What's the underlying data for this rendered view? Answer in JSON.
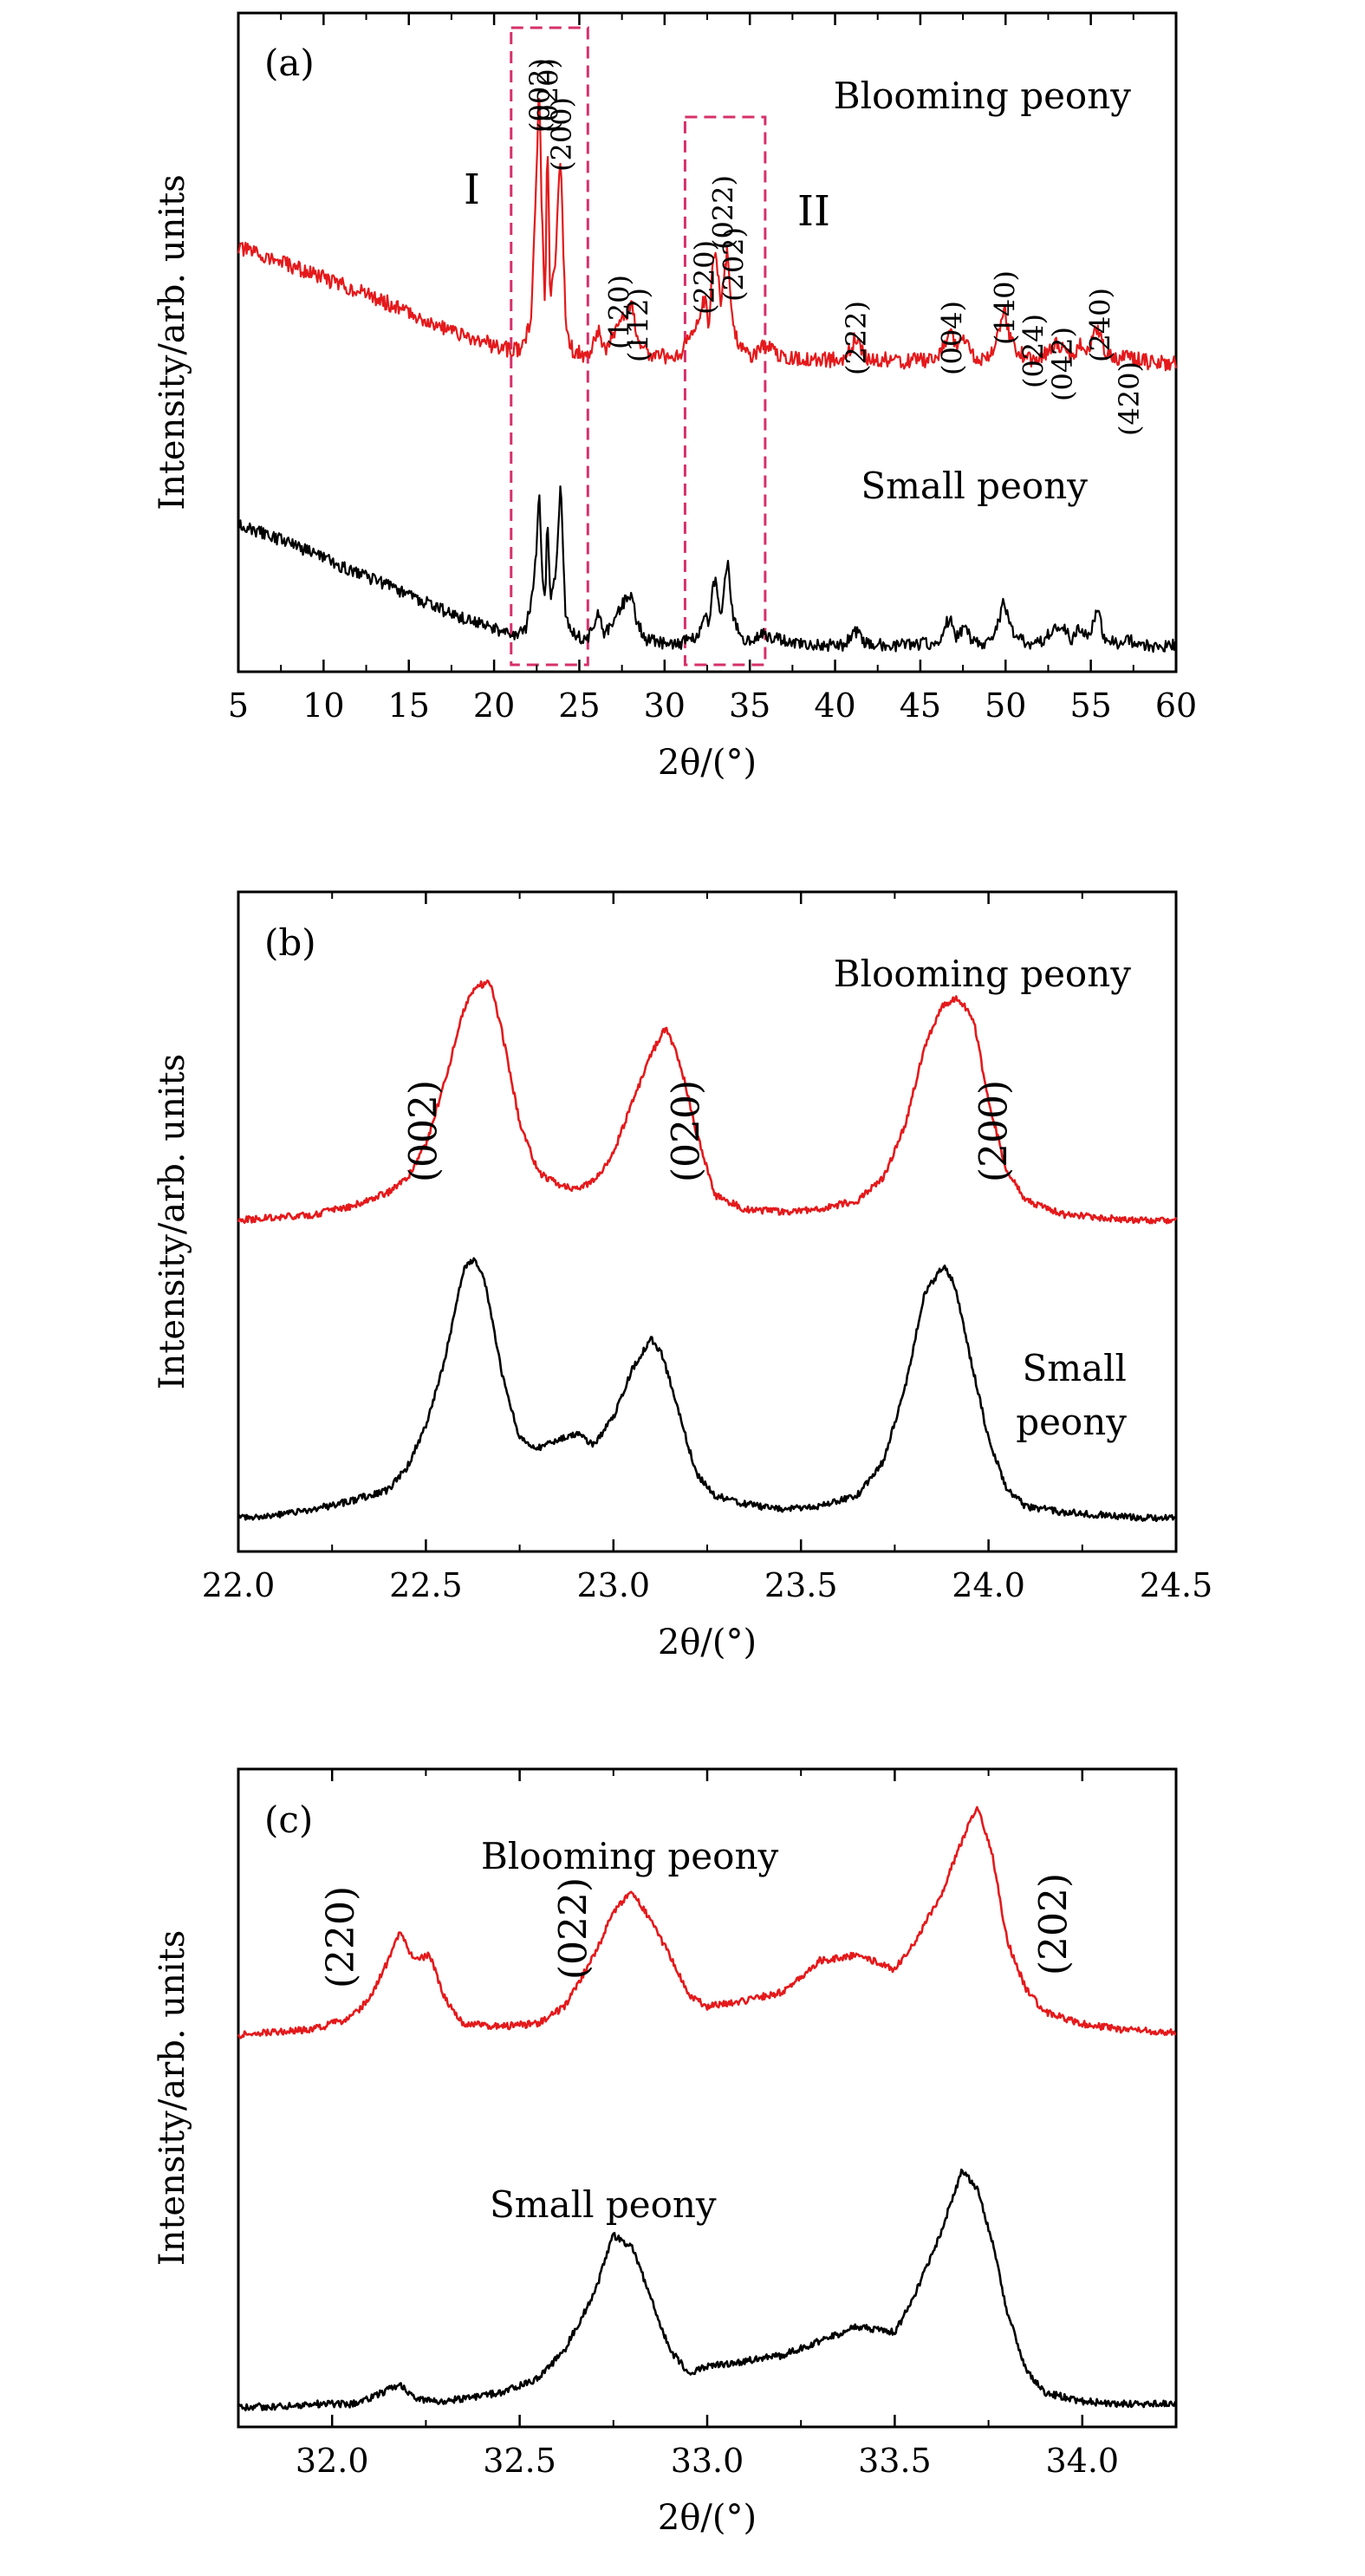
{
  "chart_data": [
    {
      "type": "line",
      "panel_label": "(a)",
      "xlabel": "2θ/(°)",
      "ylabel": "Intensity/arb. units",
      "xlim": [
        5,
        60
      ],
      "xticks": [
        5,
        10,
        15,
        20,
        25,
        30,
        35,
        40,
        45,
        50,
        55,
        60
      ],
      "tick_labels": [
        "5",
        "10",
        "15",
        "20",
        "25",
        "30",
        "35",
        "40",
        "45",
        "50",
        "55",
        "60"
      ],
      "y_ticks_labeled": false,
      "series": [
        {
          "name": "Blooming peony",
          "color": "#e4191b",
          "x": [
            5,
            6,
            8,
            10,
            12,
            14,
            16,
            18,
            20,
            21,
            21.8,
            22.2,
            22.5,
            22.65,
            22.8,
            23.0,
            23.12,
            23.3,
            23.6,
            23.9,
            24.2,
            24.6,
            25.5,
            26.1,
            26.5,
            27.3,
            27.7,
            28.1,
            28.4,
            29,
            30,
            31,
            32.0,
            32.4,
            32.6,
            32.8,
            33.0,
            33.3,
            33.7,
            34.0,
            34.5,
            35,
            35.8,
            36.3,
            37,
            38,
            39,
            40.5,
            41.2,
            41.9,
            43,
            44,
            45,
            46,
            46.5,
            46.8,
            47.1,
            47.6,
            48.2,
            49,
            49.5,
            49.9,
            50.2,
            50.6,
            51.5,
            52,
            53.0,
            53.5,
            53.9,
            54.3,
            54.8,
            55.4,
            55.8,
            56.5,
            57.2,
            58,
            59,
            60
          ],
          "y": [
            95,
            92,
            84,
            76,
            68,
            59,
            49,
            40,
            33,
            30,
            32,
            55,
            150,
            200,
            120,
            55,
            170,
            60,
            90,
            155,
            45,
            30,
            26,
            44,
            30,
            46,
            52,
            58,
            40,
            28,
            26,
            27,
            52,
            65,
            42,
            82,
            95,
            62,
            96,
            46,
            30,
            26,
            32,
            30,
            26,
            25,
            24,
            24,
            38,
            24,
            24,
            23,
            24,
            24,
            36,
            44,
            30,
            38,
            24,
            24,
            36,
            58,
            40,
            30,
            24,
            24,
            34,
            32,
            26,
            34,
            28,
            46,
            30,
            24,
            27,
            23,
            22,
            22
          ]
        },
        {
          "name": "Small peony",
          "color": "#000000",
          "x": [
            5,
            6,
            8,
            10,
            12,
            14,
            16,
            18,
            20,
            21,
            21.8,
            22.2,
            22.5,
            22.65,
            22.8,
            23.0,
            23.12,
            23.3,
            23.6,
            23.9,
            24.2,
            24.6,
            25.5,
            26.1,
            26.5,
            27.3,
            27.7,
            28.1,
            28.4,
            29,
            30,
            31,
            32.0,
            32.4,
            32.6,
            32.8,
            33.0,
            33.3,
            33.7,
            34.0,
            34.5,
            35,
            35.8,
            36.3,
            37,
            38,
            39,
            40.5,
            41.2,
            41.9,
            43,
            44,
            45,
            46,
            46.5,
            46.8,
            47.1,
            47.6,
            48.2,
            49,
            49.5,
            49.9,
            50.2,
            50.6,
            51.5,
            52,
            53.0,
            53.5,
            53.9,
            54.3,
            54.8,
            55.4,
            55.8,
            56.5,
            57.2,
            58,
            59,
            60
          ],
          "y": [
            95,
            90,
            82,
            72,
            63,
            54,
            44,
            35,
            28,
            24,
            25,
            45,
            80,
            120,
            70,
            40,
            100,
            45,
            60,
            120,
            35,
            24,
            20,
            36,
            24,
            38,
            46,
            48,
            30,
            20,
            18,
            18,
            24,
            40,
            28,
            55,
            60,
            36,
            70,
            35,
            22,
            20,
            24,
            22,
            20,
            18,
            17,
            17,
            26,
            17,
            17,
            17,
            18,
            18,
            30,
            36,
            22,
            28,
            18,
            18,
            28,
            46,
            30,
            22,
            18,
            18,
            28,
            26,
            19,
            28,
            22,
            38,
            22,
            18,
            20,
            17,
            16,
            17
          ]
        }
      ],
      "series_labels": [
        "Blooming peony",
        "Small peony"
      ],
      "peak_labels": [
        "(002)",
        "(020)",
        "(200)",
        "(120)",
        "(112)",
        "(220)",
        "(022)",
        "(202)",
        "(222)",
        "(004)",
        "(140)",
        "(024)",
        "(042)",
        "(240)",
        "(420)"
      ],
      "regions": [
        {
          "label": "I",
          "x_range": [
            21,
            25.5
          ]
        },
        {
          "label": "II",
          "x_range": [
            31.2,
            35.9
          ]
        }
      ]
    },
    {
      "type": "line",
      "panel_label": "(b)",
      "xlabel": "2θ/(°)",
      "ylabel": "Intensity/arb. units",
      "xlim": [
        22.0,
        24.5
      ],
      "xticks": [
        22.0,
        22.5,
        23.0,
        23.5,
        24.0,
        24.5
      ],
      "tick_labels": [
        "22.0",
        "22.5",
        "23.0",
        "23.5",
        "24.0",
        "24.5"
      ],
      "y_ticks_labeled": false,
      "series": [
        {
          "name": "Blooming peony",
          "color": "#e4191b",
          "x": [
            22.0,
            22.1,
            22.2,
            22.3,
            22.4,
            22.45,
            22.5,
            22.55,
            22.6,
            22.63,
            22.67,
            22.7,
            22.75,
            22.8,
            22.85,
            22.9,
            22.95,
            23.0,
            23.05,
            23.1,
            23.14,
            23.18,
            23.22,
            23.27,
            23.35,
            23.45,
            23.55,
            23.65,
            23.72,
            23.78,
            23.83,
            23.88,
            23.92,
            23.96,
            24.0,
            24.05,
            24.1,
            24.2,
            24.3,
            24.4,
            24.5
          ],
          "y": [
            0.03,
            0.04,
            0.05,
            0.08,
            0.13,
            0.18,
            0.3,
            0.52,
            0.78,
            0.86,
            0.88,
            0.72,
            0.38,
            0.2,
            0.16,
            0.14,
            0.17,
            0.27,
            0.45,
            0.62,
            0.72,
            0.58,
            0.35,
            0.12,
            0.07,
            0.06,
            0.07,
            0.1,
            0.18,
            0.38,
            0.65,
            0.8,
            0.82,
            0.75,
            0.45,
            0.2,
            0.1,
            0.05,
            0.04,
            0.03,
            0.03
          ]
        },
        {
          "name": "Small peony",
          "color": "#000000",
          "x": [
            22.0,
            22.1,
            22.2,
            22.3,
            22.4,
            22.45,
            22.5,
            22.55,
            22.6,
            22.63,
            22.66,
            22.7,
            22.75,
            22.8,
            22.85,
            22.9,
            22.95,
            23.0,
            23.05,
            23.1,
            23.13,
            23.17,
            23.22,
            23.27,
            23.35,
            23.45,
            23.55,
            23.65,
            23.72,
            23.78,
            23.83,
            23.88,
            23.91,
            23.95,
            24.0,
            24.05,
            24.1,
            24.2,
            24.3,
            24.4,
            24.5
          ],
          "y": [
            0.02,
            0.03,
            0.05,
            0.08,
            0.12,
            0.2,
            0.35,
            0.58,
            0.9,
            0.95,
            0.85,
            0.55,
            0.3,
            0.27,
            0.3,
            0.32,
            0.28,
            0.38,
            0.55,
            0.66,
            0.6,
            0.42,
            0.18,
            0.1,
            0.07,
            0.05,
            0.06,
            0.1,
            0.22,
            0.5,
            0.82,
            0.92,
            0.85,
            0.6,
            0.3,
            0.12,
            0.06,
            0.04,
            0.03,
            0.02,
            0.02
          ]
        }
      ],
      "series_labels": [
        "Blooming peony",
        "Small",
        "peony"
      ],
      "peak_labels": [
        "(002)",
        "(020)",
        "(200)"
      ]
    },
    {
      "type": "line",
      "panel_label": "(c)",
      "xlabel": "2θ/(°)",
      "ylabel": "Intensity/arb. units",
      "xlim": [
        31.75,
        34.25
      ],
      "xticks": [
        32.0,
        32.5,
        33.0,
        33.5,
        34.0
      ],
      "tick_labels": [
        "32.0",
        "32.5",
        "33.0",
        "33.5",
        "34.0"
      ],
      "y_ticks_labeled": false,
      "series": [
        {
          "name": "Blooming peony",
          "color": "#e4191b",
          "x": [
            31.75,
            31.85,
            31.95,
            32.05,
            32.1,
            32.15,
            32.18,
            32.22,
            32.26,
            32.3,
            32.35,
            32.45,
            32.55,
            32.62,
            32.7,
            32.75,
            32.8,
            32.85,
            32.9,
            32.95,
            33.0,
            33.1,
            33.2,
            33.3,
            33.4,
            33.5,
            33.55,
            33.62,
            33.68,
            33.72,
            33.76,
            33.8,
            33.85,
            33.9,
            34.0,
            34.1,
            34.25
          ],
          "y": [
            0.02,
            0.03,
            0.04,
            0.08,
            0.15,
            0.28,
            0.38,
            0.28,
            0.3,
            0.15,
            0.06,
            0.05,
            0.06,
            0.12,
            0.3,
            0.45,
            0.52,
            0.42,
            0.3,
            0.16,
            0.12,
            0.14,
            0.17,
            0.28,
            0.3,
            0.25,
            0.34,
            0.5,
            0.7,
            0.82,
            0.65,
            0.35,
            0.18,
            0.1,
            0.06,
            0.04,
            0.03
          ]
        },
        {
          "name": "Small peony",
          "color": "#000000",
          "x": [
            31.75,
            31.85,
            31.95,
            32.05,
            32.1,
            32.15,
            32.18,
            32.22,
            32.26,
            32.3,
            32.35,
            32.45,
            32.55,
            32.62,
            32.7,
            32.75,
            32.8,
            32.85,
            32.9,
            32.95,
            33.0,
            33.1,
            33.2,
            33.3,
            33.4,
            33.5,
            33.55,
            33.62,
            33.68,
            33.72,
            33.76,
            33.8,
            33.85,
            33.9,
            34.0,
            34.1,
            34.25
          ],
          "y": [
            0.02,
            0.02,
            0.03,
            0.03,
            0.05,
            0.08,
            0.1,
            0.05,
            0.04,
            0.04,
            0.05,
            0.07,
            0.12,
            0.22,
            0.42,
            0.62,
            0.58,
            0.4,
            0.22,
            0.14,
            0.16,
            0.18,
            0.2,
            0.25,
            0.3,
            0.28,
            0.4,
            0.62,
            0.85,
            0.78,
            0.6,
            0.35,
            0.15,
            0.07,
            0.04,
            0.03,
            0.03
          ]
        }
      ],
      "series_labels": [
        "Blooming peony",
        "Small peony"
      ],
      "peak_labels": [
        "(220)",
        "(022)",
        "(202)"
      ]
    }
  ]
}
